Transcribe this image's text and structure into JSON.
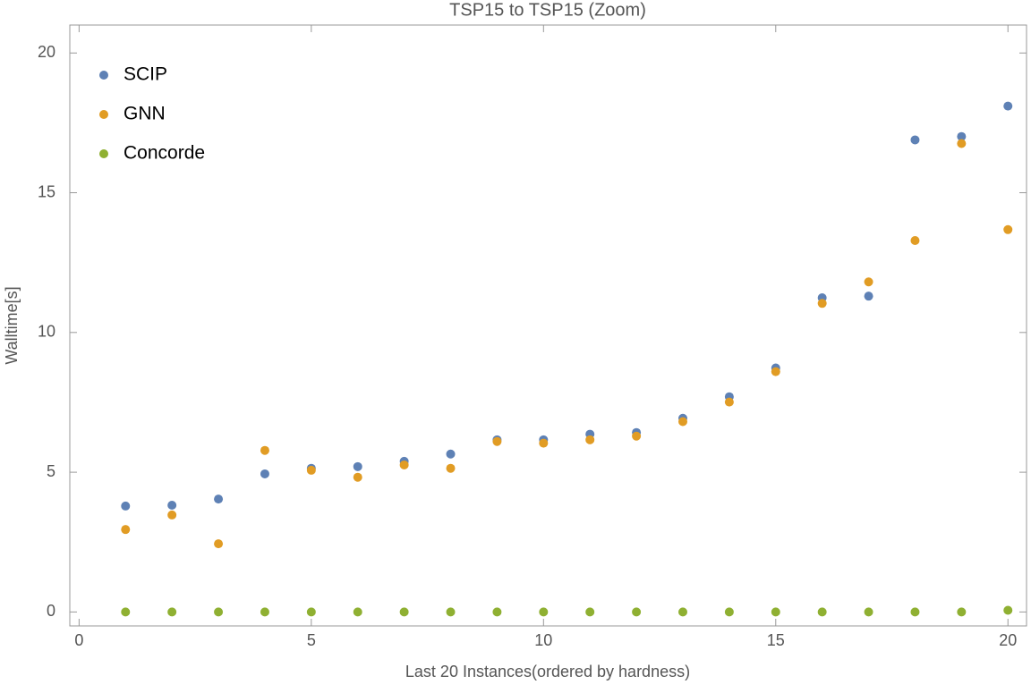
{
  "chart_data": {
    "type": "scatter",
    "title": "TSP15 to TSP15 (Zoom)",
    "x_label": "Last 20 Instances(ordered by hardness)",
    "y_label": "Walltime[s]",
    "x": [
      1,
      2,
      3,
      4,
      5,
      6,
      7,
      8,
      9,
      10,
      11,
      12,
      13,
      14,
      15,
      16,
      17,
      18,
      19,
      20
    ],
    "series": [
      {
        "name": "SCIP",
        "color": "#5e81b5",
        "values": [
          3.79,
          3.82,
          4.04,
          4.94,
          5.14,
          5.2,
          5.39,
          5.65,
          6.16,
          6.16,
          6.36,
          6.42,
          6.93,
          7.7,
          8.73,
          11.24,
          11.3,
          16.89,
          17.01,
          18.1
        ]
      },
      {
        "name": "GNN",
        "color": "#e19c24",
        "values": [
          2.95,
          3.47,
          2.44,
          5.78,
          5.07,
          4.82,
          5.26,
          5.14,
          6.1,
          6.04,
          6.16,
          6.29,
          6.81,
          7.51,
          8.6,
          11.04,
          11.81,
          13.29,
          16.76,
          13.68
        ]
      },
      {
        "name": "Concorde",
        "color": "#8fb032",
        "values": [
          0,
          0,
          0,
          0,
          0,
          0,
          0,
          0,
          0,
          0,
          0,
          0,
          0,
          0,
          0,
          0,
          0,
          0,
          0,
          0.06
        ]
      }
    ],
    "xlim": [
      -0.2,
      20.4
    ],
    "ylim": [
      -0.5,
      21
    ],
    "xticks": [
      0,
      5,
      10,
      15,
      20
    ],
    "yticks": [
      0,
      5,
      10,
      15,
      20
    ],
    "legend": "upper-left"
  }
}
